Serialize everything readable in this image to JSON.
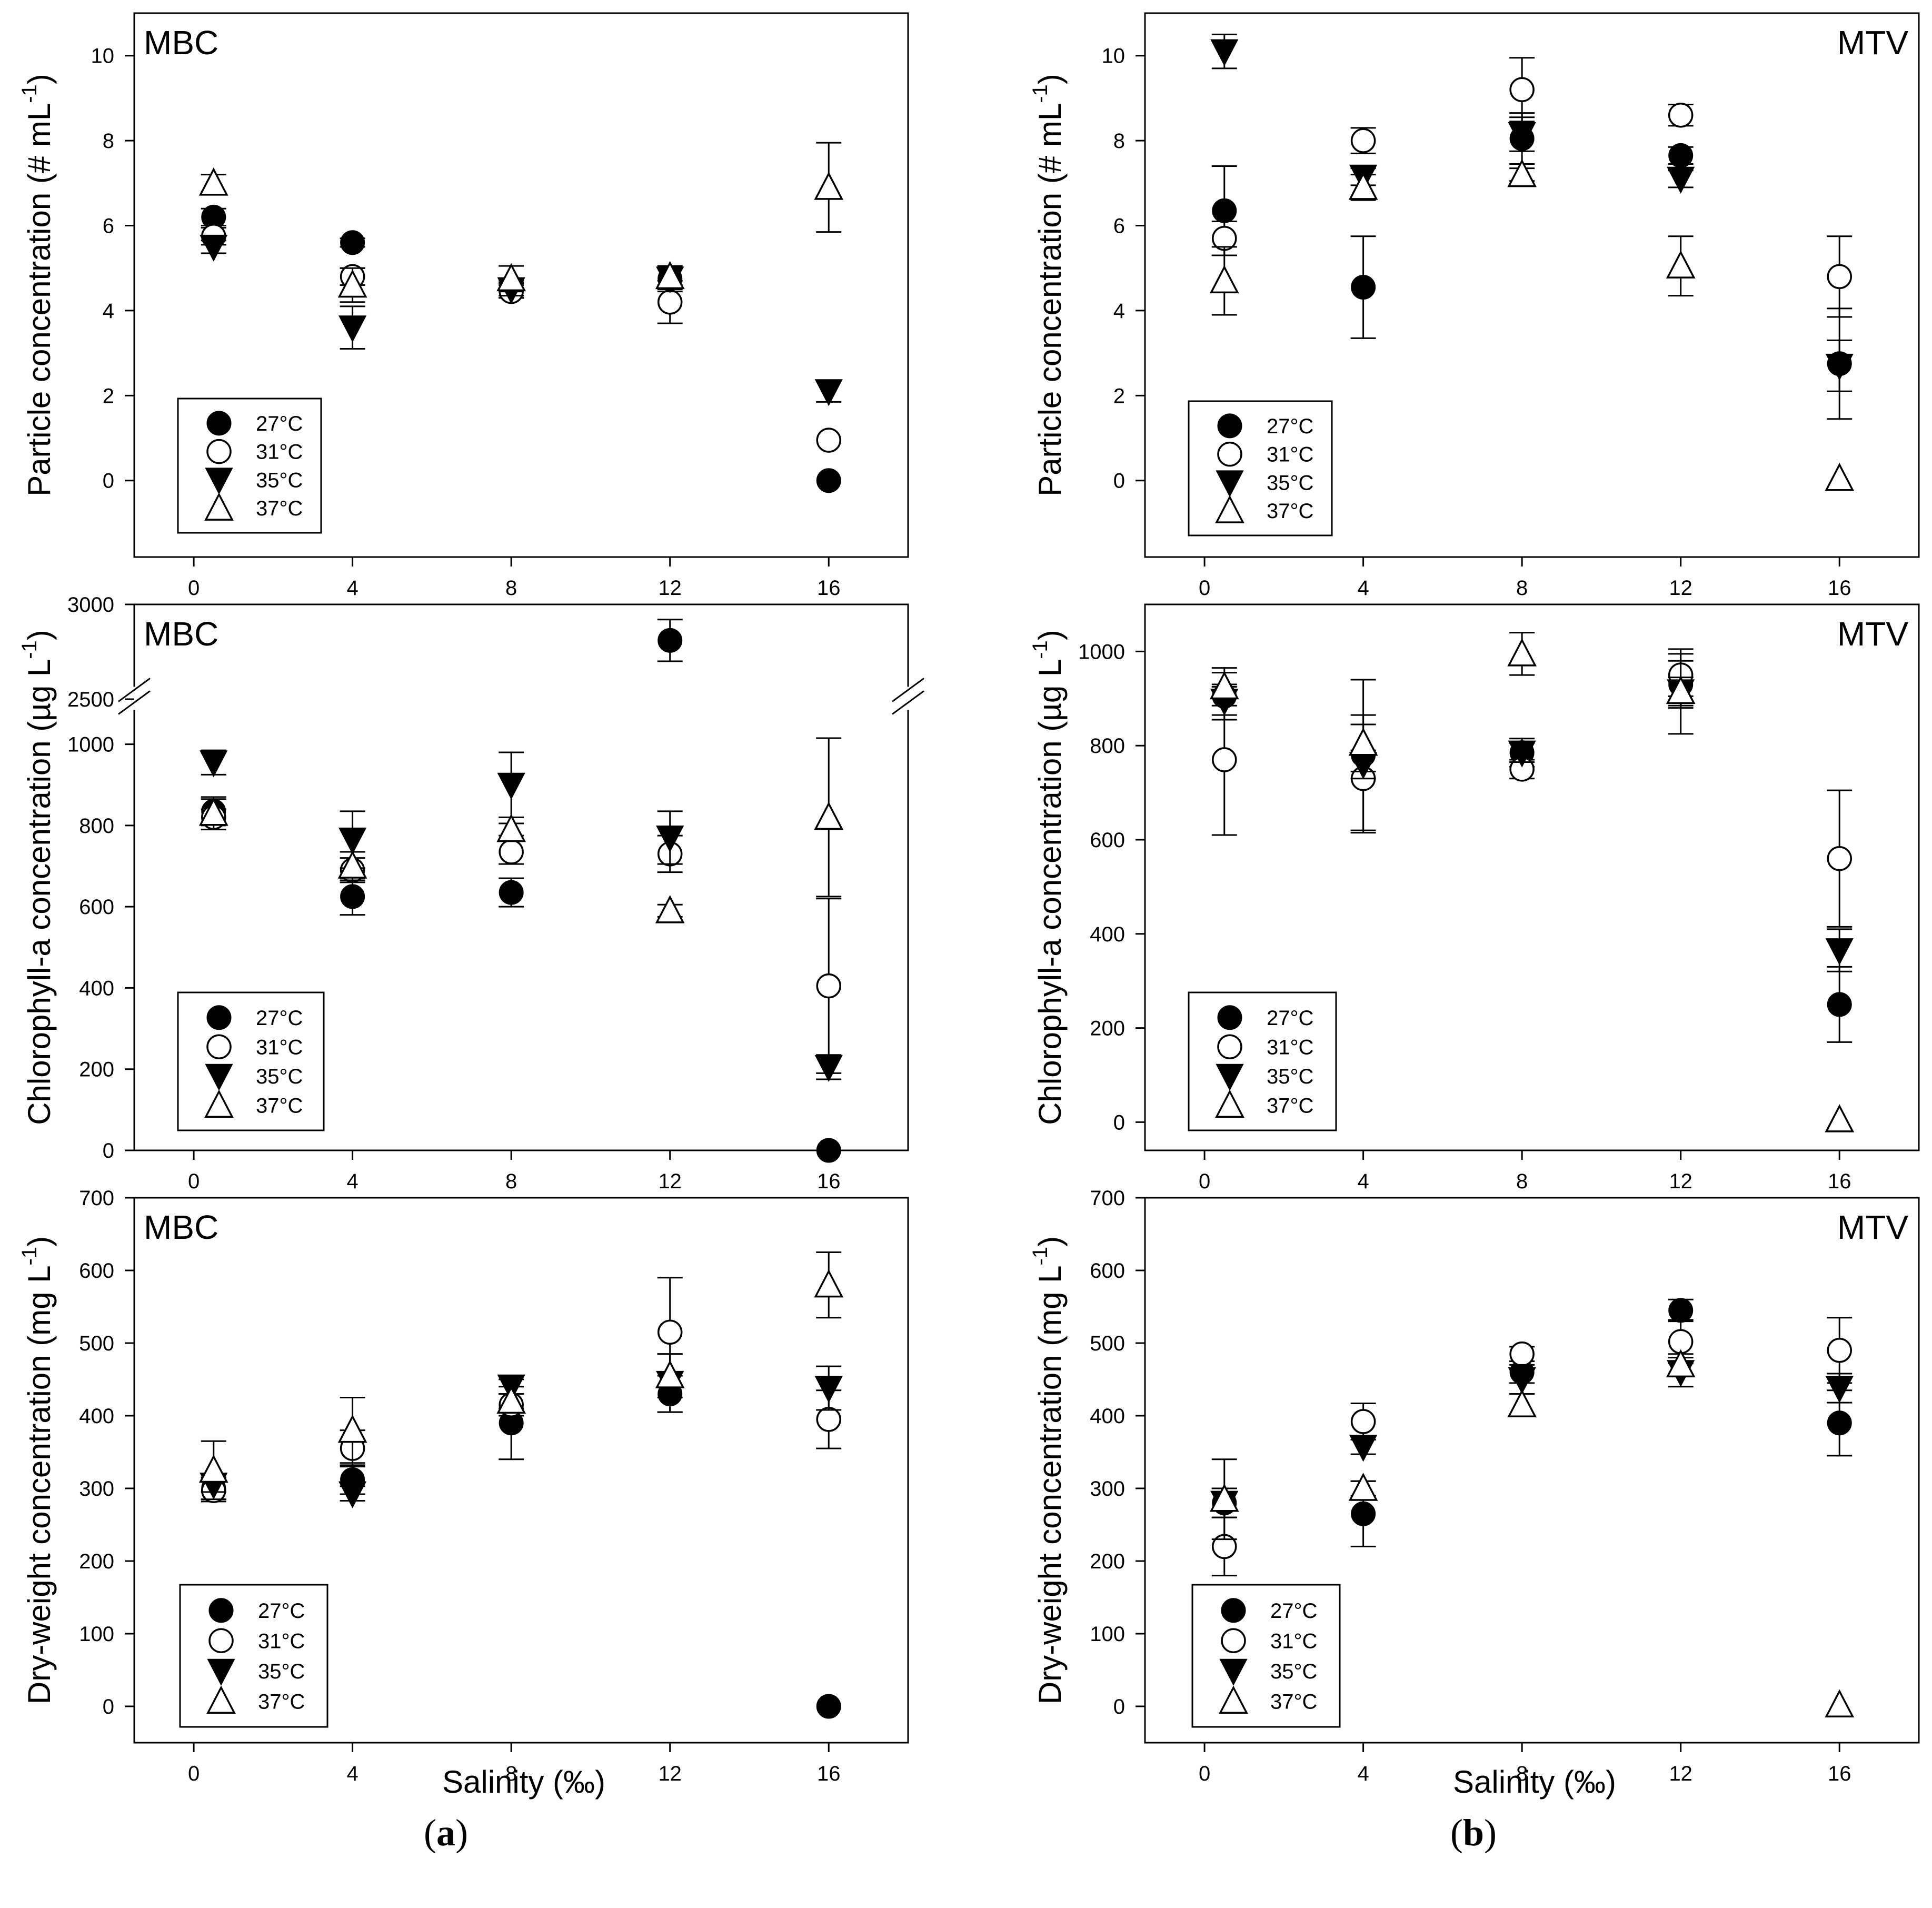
{
  "figure": {
    "panel_a_label": "a",
    "panel_b_label": "b"
  },
  "legend": [
    "27°C",
    "31°C",
    "35°C",
    "37°C"
  ],
  "xlabel": "Salinity (‰)",
  "chart_data": [
    {
      "id": "p1",
      "type": "scatter",
      "title": "MBC",
      "title_pos": "top-left",
      "ylabel": "Particle concentration (# mL^-1)",
      "ylim": [
        -1.8,
        11
      ],
      "yticks": [
        0,
        2,
        4,
        6,
        8,
        10
      ],
      "xlim": [
        -1.5,
        18
      ],
      "xticks": [
        0,
        4,
        8,
        12,
        16
      ],
      "legend_pos": "bottom-left",
      "series": [
        {
          "name": "27°C",
          "marker": "circle-filled",
          "x": [
            0.5,
            4,
            8,
            12,
            16
          ],
          "y": [
            6.2,
            5.6,
            4.5,
            4.75,
            0.0
          ],
          "err": [
            0.2,
            0.1,
            0.2,
            0.25,
            0
          ]
        },
        {
          "name": "31°C",
          "marker": "circle-open",
          "x": [
            0.5,
            4,
            8,
            12,
            16
          ],
          "y": [
            5.75,
            4.8,
            4.45,
            4.2,
            0.95
          ],
          "err": [
            0.2,
            0.2,
            0.15,
            0.5,
            0
          ]
        },
        {
          "name": "35°C",
          "marker": "triangle-down-filled",
          "x": [
            0.5,
            4,
            8,
            12,
            16
          ],
          "y": [
            5.5,
            3.6,
            4.5,
            4.75,
            2.1
          ],
          "err": [
            0.15,
            0.5,
            0.15,
            0.3,
            0.25
          ]
        },
        {
          "name": "37°C",
          "marker": "triangle-up-open",
          "x": [
            0.5,
            4,
            8,
            12,
            16
          ],
          "y": [
            7.0,
            4.6,
            4.75,
            4.8,
            6.9
          ],
          "err": [
            0.2,
            0.4,
            0.3,
            0.2,
            1.05
          ]
        }
      ]
    },
    {
      "id": "p2",
      "type": "scatter",
      "title": "MTV",
      "title_pos": "top-right",
      "ylabel": "Particle concentration (# mL^-1)",
      "ylim": [
        -1.8,
        11
      ],
      "yticks": [
        0,
        2,
        4,
        6,
        8,
        10
      ],
      "xlim": [
        -1.5,
        18
      ],
      "xticks": [
        0,
        4,
        8,
        12,
        16
      ],
      "legend_pos": "bottom-left",
      "series": [
        {
          "name": "27°C",
          "marker": "circle-filled",
          "x": [
            0.5,
            4,
            8,
            12,
            16
          ],
          "y": [
            6.35,
            4.55,
            8.05,
            7.65,
            2.75
          ],
          "err": [
            1.05,
            1.2,
            0.6,
            0.2,
            1.3
          ]
        },
        {
          "name": "31°C",
          "marker": "circle-open",
          "x": [
            0.5,
            4,
            8,
            12,
            16
          ],
          "y": [
            5.7,
            8.0,
            9.2,
            8.6,
            4.8
          ],
          "err": [
            0.4,
            0.3,
            0.75,
            0.25,
            0.95
          ]
        },
        {
          "name": "35°C",
          "marker": "triangle-down-filled",
          "x": [
            0.5,
            4,
            8,
            12,
            16
          ],
          "y": [
            10.1,
            7.15,
            8.15,
            7.1,
            2.7
          ],
          "err": [
            0.4,
            0.2,
            0.4,
            0.2,
            0.6
          ]
        },
        {
          "name": "37°C",
          "marker": "triangle-up-open",
          "x": [
            0.5,
            4,
            8,
            12,
            16
          ],
          "y": [
            4.7,
            6.9,
            7.2,
            5.05,
            0.05
          ],
          "err": [
            0.8,
            0.3,
            0.15,
            0.7,
            0
          ]
        }
      ]
    },
    {
      "id": "p3",
      "type": "scatter",
      "title": "MBC",
      "title_pos": "top-left",
      "ylabel": "Chlorophyll-a concentration (µg L^-1)",
      "axis_break": {
        "low_max": 1100,
        "high_min": 2450,
        "high_max": 3000
      },
      "yticks": [
        0,
        200,
        400,
        600,
        800,
        1000,
        2500,
        3000
      ],
      "xlim": [
        -1.5,
        18
      ],
      "xticks": [
        0,
        4,
        8,
        12,
        16
      ],
      "legend_pos": "bottom-left",
      "series": [
        {
          "name": "27°C",
          "marker": "circle-filled",
          "x": [
            0.5,
            4,
            8,
            12,
            16
          ],
          "y": [
            835,
            625,
            635,
            2810,
            0
          ],
          "err": [
            30,
            45,
            35,
            110,
            0
          ]
        },
        {
          "name": "31°C",
          "marker": "circle-open",
          "x": [
            0.5,
            4,
            8,
            12,
            16
          ],
          "y": [
            820,
            690,
            735,
            730,
            405
          ],
          "err": [
            20,
            30,
            30,
            45,
            215
          ]
        },
        {
          "name": "35°C",
          "marker": "triangle-down-filled",
          "x": [
            0.5,
            4,
            8,
            12,
            16
          ],
          "y": [
            955,
            765,
            900,
            770,
            205
          ],
          "err": [
            30,
            70,
            80,
            65,
            30
          ]
        },
        {
          "name": "37°C",
          "marker": "triangle-up-open",
          "x": [
            0.5,
            4,
            8,
            12,
            16
          ],
          "y": [
            830,
            700,
            790,
            590,
            820
          ],
          "err": [
            40,
            35,
            15,
            15,
            195
          ]
        }
      ]
    },
    {
      "id": "p4",
      "type": "scatter",
      "title": "MTV",
      "title_pos": "top-right",
      "ylabel": "Chlorophyll-a concentration (µg L^-1)",
      "ylim": [
        -60,
        1100
      ],
      "yticks": [
        0,
        200,
        400,
        600,
        800,
        1000
      ],
      "xlim": [
        -1.5,
        18
      ],
      "xticks": [
        0,
        4,
        8,
        12,
        16
      ],
      "legend_pos": "bottom-left",
      "series": [
        {
          "name": "27°C",
          "marker": "circle-filled",
          "x": [
            0.5,
            4,
            8,
            12,
            16
          ],
          "y": [
            905,
            780,
            785,
            930,
            250
          ],
          "err": [
            50,
            160,
            30,
            50,
            80
          ]
        },
        {
          "name": "31°C",
          "marker": "circle-open",
          "x": [
            0.5,
            4,
            8,
            12,
            16
          ],
          "y": [
            770,
            730,
            750,
            950,
            560
          ],
          "err": [
            160,
            115,
            20,
            45,
            145
          ]
        },
        {
          "name": "35°C",
          "marker": "triangle-down-filled",
          "x": [
            0.5,
            4,
            8,
            12,
            16
          ],
          "y": [
            895,
            760,
            785,
            915,
            365
          ],
          "err": [
            30,
            30,
            20,
            90,
            45
          ]
        },
        {
          "name": "37°C",
          "marker": "triangle-up-open",
          "x": [
            0.5,
            4,
            8,
            12,
            16
          ],
          "y": [
            925,
            805,
            995,
            915,
            5
          ],
          "err": [
            40,
            60,
            45,
            30,
            0
          ]
        }
      ]
    },
    {
      "id": "p5",
      "type": "scatter",
      "title": "MBC",
      "title_pos": "top-left",
      "ylabel": "Dry-weight concentration (mg L^-1)",
      "ylim": [
        -50,
        700
      ],
      "yticks": [
        0,
        100,
        200,
        300,
        400,
        500,
        600,
        700
      ],
      "xlim": [
        -1.5,
        18
      ],
      "xticks": [
        0,
        4,
        8,
        12,
        16
      ],
      "legend_pos": "bottom-left",
      "series": [
        {
          "name": "27°C",
          "marker": "circle-filled",
          "x": [
            0.5,
            4,
            8,
            12,
            16
          ],
          "y": [
            300,
            312,
            390,
            430,
            0
          ],
          "err": [
            15,
            20,
            50,
            25,
            0
          ]
        },
        {
          "name": "31°C",
          "marker": "circle-open",
          "x": [
            0.5,
            4,
            8,
            12,
            16
          ],
          "y": [
            297,
            355,
            415,
            515,
            395
          ],
          "err": [
            15,
            25,
            15,
            75,
            40
          ]
        },
        {
          "name": "35°C",
          "marker": "triangle-down-filled",
          "x": [
            0.5,
            4,
            8,
            12,
            16
          ],
          "y": [
            305,
            293,
            440,
            445,
            438
          ],
          "err": [
            10,
            10,
            10,
            40,
            30
          ]
        },
        {
          "name": "37°C",
          "marker": "triangle-up-open",
          "x": [
            0.5,
            4,
            8,
            12,
            16
          ],
          "y": [
            325,
            380,
            420,
            455,
            580
          ],
          "err": [
            40,
            45,
            10,
            30,
            45
          ]
        }
      ]
    },
    {
      "id": "p6",
      "type": "scatter",
      "title": "MTV",
      "title_pos": "top-right",
      "ylabel": "Dry-weight concentration (mg L^-1)",
      "ylim": [
        -50,
        700
      ],
      "yticks": [
        0,
        100,
        200,
        300,
        400,
        500,
        600,
        700
      ],
      "xlim": [
        -1.5,
        18
      ],
      "xticks": [
        0,
        4,
        8,
        12,
        16
      ],
      "legend_pos": "bottom-left",
      "series": [
        {
          "name": "27°C",
          "marker": "circle-filled",
          "x": [
            0.5,
            4,
            8,
            12,
            16
          ],
          "y": [
            280,
            265,
            460,
            545,
            390
          ],
          "err": [
            20,
            45,
            15,
            15,
            45
          ]
        },
        {
          "name": "31°C",
          "marker": "circle-open",
          "x": [
            0.5,
            4,
            8,
            12,
            16
          ],
          "y": [
            220,
            392,
            485,
            502,
            490
          ],
          "err": [
            40,
            25,
            10,
            30,
            45
          ]
        },
        {
          "name": "35°C",
          "marker": "triangle-down-filled",
          "x": [
            0.5,
            4,
            8,
            12,
            16
          ],
          "y": [
            280,
            357,
            450,
            460,
            438
          ],
          "err": [
            20,
            10,
            20,
            20,
            20
          ]
        },
        {
          "name": "37°C",
          "marker": "triangle-up-open",
          "x": [
            0.5,
            4,
            8,
            12,
            16
          ],
          "y": [
            285,
            300,
            415,
            470,
            2
          ],
          "err": [
            55,
            10,
            15,
            15,
            0
          ]
        }
      ]
    }
  ]
}
